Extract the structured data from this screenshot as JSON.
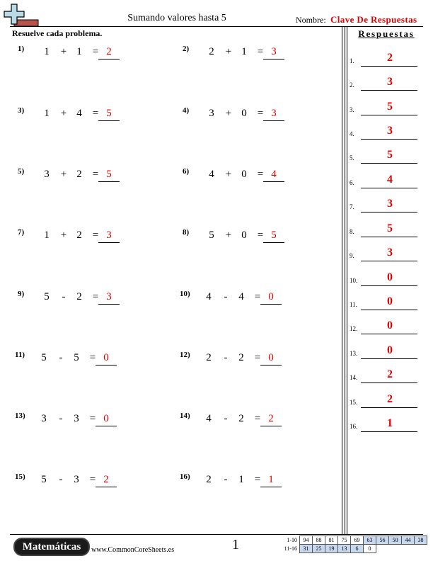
{
  "header": {
    "title": "Sumando valores hasta 5",
    "name_label": "Nombre:",
    "name_value": "Clave De Respuestas"
  },
  "instructions": "Resuelve cada problema.",
  "answers_header": "Respuestas",
  "problems": [
    {
      "num": "1)",
      "a": "1",
      "op": "+",
      "b": "1",
      "eq": "=",
      "ans": "2"
    },
    {
      "num": "2)",
      "a": "2",
      "op": "+",
      "b": "1",
      "eq": "=",
      "ans": "3"
    },
    {
      "num": "3)",
      "a": "1",
      "op": "+",
      "b": "4",
      "eq": "=",
      "ans": "5"
    },
    {
      "num": "4)",
      "a": "3",
      "op": "+",
      "b": "0",
      "eq": "=",
      "ans": "3"
    },
    {
      "num": "5)",
      "a": "3",
      "op": "+",
      "b": "2",
      "eq": "=",
      "ans": "5"
    },
    {
      "num": "6)",
      "a": "4",
      "op": "+",
      "b": "0",
      "eq": "=",
      "ans": "4"
    },
    {
      "num": "7)",
      "a": "1",
      "op": "+",
      "b": "2",
      "eq": "=",
      "ans": "3"
    },
    {
      "num": "8)",
      "a": "5",
      "op": "+",
      "b": "0",
      "eq": "=",
      "ans": "5"
    },
    {
      "num": "9)",
      "a": "5",
      "op": "-",
      "b": "2",
      "eq": "=",
      "ans": "3"
    },
    {
      "num": "10)",
      "a": "4",
      "op": "-",
      "b": "4",
      "eq": "=",
      "ans": "0"
    },
    {
      "num": "11)",
      "a": "5",
      "op": "-",
      "b": "5",
      "eq": "=",
      "ans": "0"
    },
    {
      "num": "12)",
      "a": "2",
      "op": "-",
      "b": "2",
      "eq": "=",
      "ans": "0"
    },
    {
      "num": "13)",
      "a": "3",
      "op": "-",
      "b": "3",
      "eq": "=",
      "ans": "0"
    },
    {
      "num": "14)",
      "a": "4",
      "op": "-",
      "b": "2",
      "eq": "=",
      "ans": "2"
    },
    {
      "num": "15)",
      "a": "5",
      "op": "-",
      "b": "3",
      "eq": "=",
      "ans": "2"
    },
    {
      "num": "16)",
      "a": "2",
      "op": "-",
      "b": "1",
      "eq": "=",
      "ans": "1"
    }
  ],
  "answer_key": [
    {
      "num": "1.",
      "val": "2"
    },
    {
      "num": "2.",
      "val": "3"
    },
    {
      "num": "3.",
      "val": "5"
    },
    {
      "num": "4.",
      "val": "3"
    },
    {
      "num": "5.",
      "val": "5"
    },
    {
      "num": "6.",
      "val": "4"
    },
    {
      "num": "7.",
      "val": "3"
    },
    {
      "num": "8.",
      "val": "5"
    },
    {
      "num": "9.",
      "val": "3"
    },
    {
      "num": "10.",
      "val": "0"
    },
    {
      "num": "11.",
      "val": "0"
    },
    {
      "num": "12.",
      "val": "0"
    },
    {
      "num": "13.",
      "val": "0"
    },
    {
      "num": "14.",
      "val": "2"
    },
    {
      "num": "15.",
      "val": "2"
    },
    {
      "num": "16.",
      "val": "1"
    }
  ],
  "footer": {
    "brand": "Matemáticas",
    "url": "www.CommonCoreSheets.es",
    "page": "1",
    "score_rows": [
      {
        "label": "1-10",
        "cells": [
          "94",
          "88",
          "81",
          "75",
          "69",
          "63",
          "56",
          "50",
          "44",
          "38"
        ]
      },
      {
        "label": "11-16",
        "cells": [
          "31",
          "25",
          "19",
          "13",
          "6",
          "0"
        ]
      }
    ]
  },
  "colors": {
    "answer_red": "#e00000",
    "score_highlight": "#c8d8ee"
  }
}
